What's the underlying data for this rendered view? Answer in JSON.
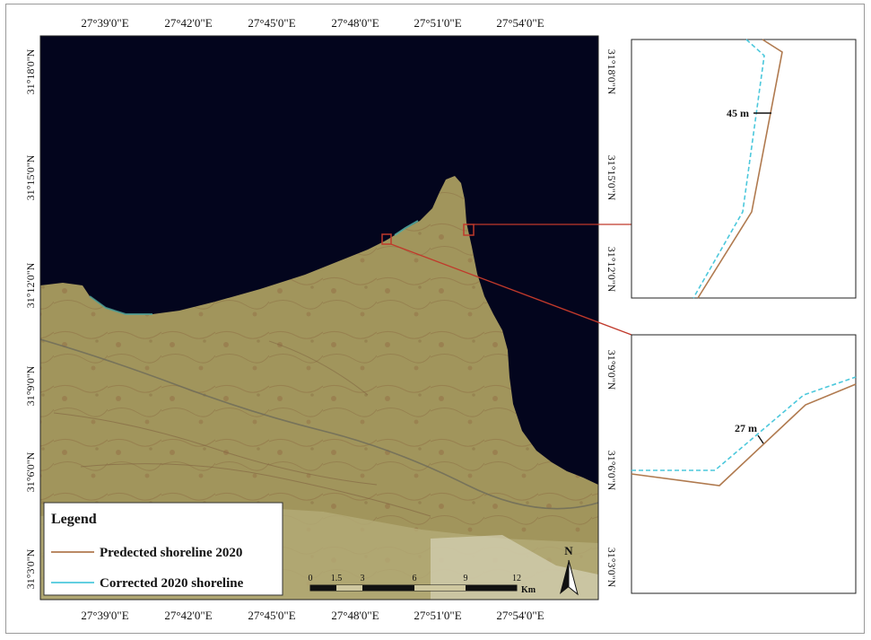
{
  "map": {
    "x_ticks_top": [
      "27°39'0\"E",
      "27°42'0\"E",
      "27°45'0\"E",
      "27°48'0\"E",
      "27°51'0\"E",
      "27°54'0\"E"
    ],
    "x_ticks_bottom": [
      "27°39'0\"E",
      "27°42'0\"E",
      "27°45'0\"E",
      "27°48'0\"E",
      "27°51'0\"E",
      "27°54'0\"E"
    ],
    "y_ticks_left": [
      "31°18'0\"N",
      "31°15'0\"N",
      "31°12'0\"N",
      "31°9'0\"N",
      "31°6'0\"N",
      "31°3'0\"N"
    ],
    "y_ticks_right": [
      "31°18'0\"N",
      "31°15'0\"N",
      "31°12'0\"N",
      "31°9'0\"N",
      "31°6'0\"N",
      "31°3'0\"N"
    ],
    "colors": {
      "sea": "#03051d",
      "land": "#9f935a",
      "predicted_line": "#b07a4f",
      "corrected_line": "#4cc8dc",
      "callout": "#c0392b"
    }
  },
  "legend": {
    "title": "Legend",
    "items": [
      {
        "label": "Predected shoreline 2020"
      },
      {
        "label": "Corrected 2020 shoreline"
      }
    ]
  },
  "scale_bar": {
    "labels": [
      "0",
      "1.5",
      "3",
      "6",
      "9",
      "12"
    ],
    "unit": "Km"
  },
  "north_arrow": {
    "letter": "N"
  },
  "insets": [
    {
      "distance_label": "45 m"
    },
    {
      "distance_label": "27 m"
    }
  ]
}
